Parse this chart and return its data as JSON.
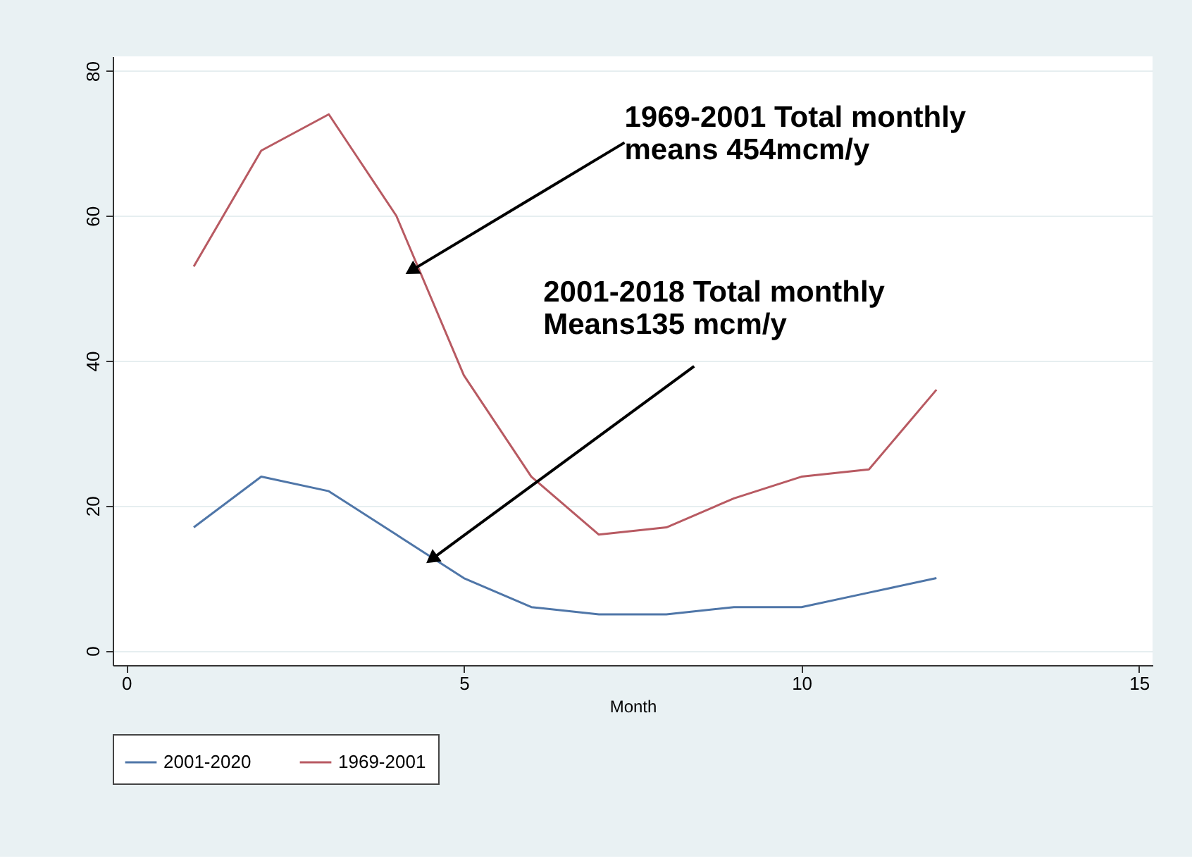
{
  "chart_data": {
    "type": "line",
    "xlabel": "Month",
    "x": [
      1,
      2,
      3,
      4,
      5,
      6,
      7,
      8,
      9,
      10,
      11,
      12
    ],
    "series": [
      {
        "name": "2001-2020",
        "color": "#4f76a8",
        "values": [
          17,
          24,
          22,
          16,
          10,
          6,
          5,
          5,
          6,
          6,
          8,
          10
        ]
      },
      {
        "name": "1969-2001",
        "color": "#b85a62",
        "values": [
          53,
          69,
          74,
          60,
          38,
          24,
          16,
          17,
          21,
          24,
          25,
          36
        ]
      }
    ],
    "xlim": [
      -0.2,
      15.2
    ],
    "ylim": [
      -2,
      82
    ],
    "xticks": [
      0,
      5,
      10,
      15
    ],
    "yticks": [
      0,
      20,
      40,
      60,
      80
    ],
    "grid": "y",
    "legend": "bottom",
    "annotations": [
      {
        "text": "1969-2001 Total monthly\nmeans 454mcm/y",
        "x": 4.25,
        "y": 52.6
      },
      {
        "text": "2001-2018 Total monthly\nMeans135 mcm/y",
        "x": 4.55,
        "y": 12.8
      }
    ]
  }
}
